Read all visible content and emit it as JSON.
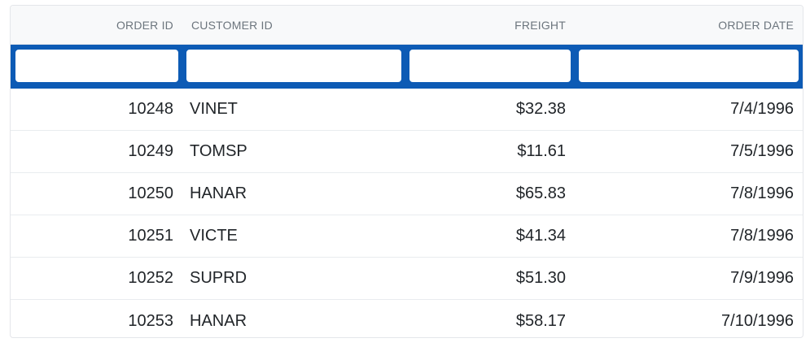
{
  "grid": {
    "columns": [
      {
        "label": "ORDER ID",
        "align": "right"
      },
      {
        "label": "CUSTOMER ID",
        "align": "left"
      },
      {
        "label": "FREIGHT",
        "align": "right"
      },
      {
        "label": "ORDER DATE",
        "align": "right"
      }
    ],
    "filters": [
      {
        "value": "",
        "placeholder": ""
      },
      {
        "value": "",
        "placeholder": ""
      },
      {
        "value": "",
        "placeholder": ""
      },
      {
        "value": "",
        "placeholder": ""
      }
    ],
    "rows": [
      {
        "order_id": "10248",
        "customer_id": "VINET",
        "freight": "$32.38",
        "order_date": "7/4/1996"
      },
      {
        "order_id": "10249",
        "customer_id": "TOMSP",
        "freight": "$11.61",
        "order_date": "7/5/1996"
      },
      {
        "order_id": "10250",
        "customer_id": "HANAR",
        "freight": "$65.83",
        "order_date": "7/8/1996"
      },
      {
        "order_id": "10251",
        "customer_id": "VICTE",
        "freight": "$41.34",
        "order_date": "7/8/1996"
      },
      {
        "order_id": "10252",
        "customer_id": "SUPRD",
        "freight": "$51.30",
        "order_date": "7/9/1996"
      },
      {
        "order_id": "10253",
        "customer_id": "HANAR",
        "freight": "$58.17",
        "order_date": "7/10/1996"
      }
    ]
  },
  "colors": {
    "filter_accent": "#0d5bb5",
    "header_bg": "#f8f9fa",
    "header_text": "#6c757d",
    "cell_text": "#212529",
    "border": "#e4e6ea"
  }
}
